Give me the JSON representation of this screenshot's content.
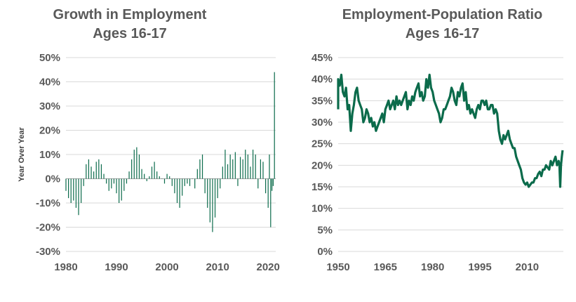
{
  "colors": {
    "series": "#0b6b4b",
    "grid": "#d9d9d9",
    "text": "#595959"
  },
  "chart_data": [
    {
      "type": "bar",
      "title_line1": "Growth in Employment",
      "title_line2": "Ages 16-17",
      "ylabel": "Year Over Year",
      "xlabel": "",
      "xlim": [
        1980,
        2021.5
      ],
      "ylim": [
        -30,
        50
      ],
      "grid": true,
      "legend": "none",
      "x_ticks": [
        1980,
        1990,
        2000,
        2010,
        2020
      ],
      "x_tick_labels": [
        "1980",
        "1990",
        "2000",
        "2010",
        "2020"
      ],
      "y_ticks": [
        -30,
        -20,
        -10,
        0,
        10,
        20,
        30,
        40,
        50
      ],
      "y_tick_labels": [
        "-30%",
        "-20%",
        "-10%",
        "0%",
        "10%",
        "20%",
        "30%",
        "40%",
        "50%"
      ],
      "series": [
        {
          "x": [
            1980.0,
            1980.5,
            1981.0,
            1981.5,
            1982.0,
            1982.5,
            1983.0,
            1983.5,
            1984.0,
            1984.5,
            1985.0,
            1985.5,
            1986.0,
            1986.5,
            1987.0,
            1987.5,
            1988.0,
            1988.5,
            1989.0,
            1989.5,
            1990.0,
            1990.5,
            1991.0,
            1991.5,
            1992.0,
            1992.5,
            1993.0,
            1993.5,
            1994.0,
            1994.5,
            1995.0,
            1995.5,
            1996.0,
            1996.5,
            1997.0,
            1997.5,
            1998.0,
            1998.5,
            1999.0,
            1999.5,
            2000.0,
            2000.5,
            2001.0,
            2001.5,
            2002.0,
            2002.5,
            2003.0,
            2003.5,
            2004.0,
            2004.5,
            2005.0,
            2005.5,
            2006.0,
            2006.5,
            2007.0,
            2007.5,
            2008.0,
            2008.5,
            2009.0,
            2009.5,
            2010.0,
            2010.5,
            2011.0,
            2011.5,
            2012.0,
            2012.5,
            2013.0,
            2013.5,
            2014.0,
            2014.5,
            2015.0,
            2015.5,
            2016.0,
            2016.5,
            2017.0,
            2017.5,
            2018.0,
            2018.5,
            2019.0,
            2019.5,
            2020.0,
            2020.25,
            2020.5,
            2020.75,
            2021.0,
            2021.25
          ],
          "values": [
            -5,
            -8,
            -10,
            -9,
            -12,
            -15,
            -10,
            -3,
            6,
            8,
            5,
            3,
            7,
            8,
            6,
            2,
            -2,
            -5,
            -4,
            -2,
            -6,
            -10,
            -9,
            -5,
            -2,
            3,
            8,
            12,
            13,
            10,
            4,
            2,
            -1,
            1,
            5,
            7,
            3,
            1,
            0,
            -2,
            2,
            1,
            -3,
            -6,
            -10,
            -12,
            -7,
            -3,
            -2,
            -3,
            0,
            -4,
            4,
            8,
            10,
            -6,
            -12,
            -18,
            -22,
            -16,
            -8,
            -4,
            5,
            12,
            6,
            10,
            8,
            11,
            -3,
            9,
            8,
            12,
            10,
            5,
            12,
            10,
            -4,
            8,
            7,
            -6,
            -12,
            10,
            -20,
            -5,
            -3,
            44
          ]
        }
      ]
    },
    {
      "type": "line",
      "title_line1": "Employment-Population Ratio",
      "title_line2": "Ages 16-17",
      "xlabel": "",
      "ylabel": "",
      "xlim": [
        1950,
        2021.5
      ],
      "ylim": [
        0,
        45
      ],
      "grid": true,
      "legend": "none",
      "x_ticks": [
        1950,
        1965,
        1980,
        1995,
        2010
      ],
      "x_tick_labels": [
        "1950",
        "1965",
        "1980",
        "1995",
        "2010"
      ],
      "y_ticks": [
        0,
        5,
        10,
        15,
        20,
        25,
        30,
        35,
        40,
        45
      ],
      "y_tick_labels": [
        "0%",
        "5%",
        "10%",
        "15%",
        "20%",
        "25%",
        "30%",
        "35%",
        "40%",
        "45%"
      ],
      "series": [
        {
          "x": [
            1948,
            1948.5,
            1949,
            1949.5,
            1950,
            1950.5,
            1951,
            1951.5,
            1952,
            1952.5,
            1953,
            1953.5,
            1954,
            1954.5,
            1955,
            1955.5,
            1956,
            1956.5,
            1957,
            1957.5,
            1958,
            1958.5,
            1959,
            1959.5,
            1960,
            1960.5,
            1961,
            1961.5,
            1962,
            1962.5,
            1963,
            1963.5,
            1964,
            1964.5,
            1965,
            1965.5,
            1966,
            1966.5,
            1967,
            1967.5,
            1968,
            1968.5,
            1969,
            1969.5,
            1970,
            1970.5,
            1971,
            1971.5,
            1972,
            1972.5,
            1973,
            1973.5,
            1974,
            1974.5,
            1975,
            1975.5,
            1976,
            1976.5,
            1977,
            1977.5,
            1978,
            1978.5,
            1979,
            1979.5,
            1980,
            1980.5,
            1981,
            1981.5,
            1982,
            1982.5,
            1983,
            1983.5,
            1984,
            1984.5,
            1985,
            1985.5,
            1986,
            1986.5,
            1987,
            1987.5,
            1988,
            1988.5,
            1989,
            1989.5,
            1990,
            1990.5,
            1991,
            1991.5,
            1992,
            1992.5,
            1993,
            1993.5,
            1994,
            1994.5,
            1995,
            1995.5,
            1996,
            1996.5,
            1997,
            1997.5,
            1998,
            1998.5,
            1999,
            1999.5,
            2000,
            2000.5,
            2001,
            2001.5,
            2002,
            2002.5,
            2003,
            2003.5,
            2004,
            2004.5,
            2005,
            2005.5,
            2006,
            2006.5,
            2007,
            2007.5,
            2008,
            2008.5,
            2009,
            2009.5,
            2010,
            2010.5,
            2011,
            2011.5,
            2012,
            2012.5,
            2013,
            2013.5,
            2014,
            2014.5,
            2015,
            2015.5,
            2016,
            2016.5,
            2017,
            2017.5,
            2018,
            2018.5,
            2019,
            2019.5,
            2020,
            2020.25,
            2020.5,
            2020.75,
            2021,
            2021.25
          ],
          "values": [
            33,
            36,
            38,
            39,
            40,
            38.5,
            41,
            37,
            36,
            38,
            33,
            34,
            28,
            32,
            34,
            37,
            38,
            35,
            34,
            33,
            30,
            31,
            33,
            32,
            30,
            31,
            29,
            30,
            28,
            29,
            30,
            31,
            32,
            30,
            33,
            34,
            35,
            33,
            34,
            35,
            33,
            36,
            34,
            35,
            34,
            35,
            36,
            37,
            33,
            35,
            34,
            36,
            35,
            37,
            38,
            39,
            36,
            37,
            35,
            36,
            40,
            38,
            41,
            38,
            37,
            35,
            34,
            33,
            32,
            30,
            31,
            33,
            33,
            34,
            35,
            36,
            38,
            37,
            35,
            34,
            37,
            36,
            38,
            39,
            35,
            37,
            33,
            34,
            32,
            33,
            32,
            31,
            33,
            34,
            33,
            35,
            35,
            34,
            35,
            33,
            33,
            34,
            34,
            32,
            33,
            32,
            28,
            26,
            25,
            27,
            26,
            27,
            28,
            26,
            25,
            24,
            24,
            22,
            21,
            20,
            19,
            17,
            16,
            15.5,
            16,
            15,
            15.5,
            16,
            16,
            17,
            17,
            18,
            18.5,
            17.5,
            19,
            19,
            20,
            19.5,
            19,
            21,
            20,
            21,
            22,
            20,
            21,
            20,
            15,
            20,
            22,
            23.5
          ]
        }
      ]
    }
  ]
}
